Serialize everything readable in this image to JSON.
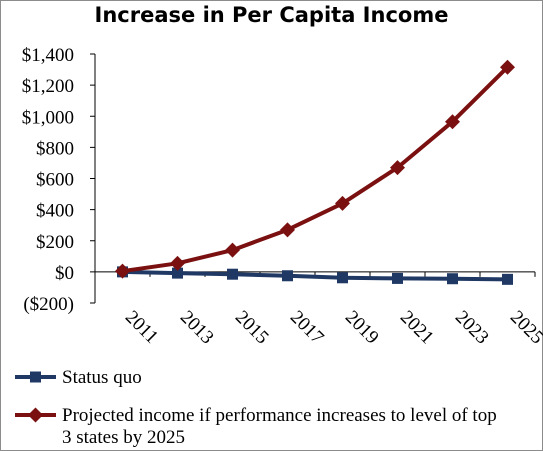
{
  "chart_data": {
    "type": "line",
    "title": "Increase in Per Capita Income",
    "xlabel": "",
    "ylabel": "",
    "categories": [
      "2011",
      "2013",
      "2015",
      "2017",
      "2019",
      "2021",
      "2023",
      "2025"
    ],
    "y_ticks": [
      "$1,400",
      "$1,200",
      "$1,000",
      "$800",
      "$600",
      "$400",
      "$200",
      "$0",
      "($200)"
    ],
    "ylim": [
      -200,
      1400
    ],
    "grid": false,
    "legend_position": "bottom",
    "series": [
      {
        "name": "Status quo",
        "values": [
          0,
          -8,
          -15,
          -25,
          -38,
          -42,
          -44,
          -48
        ],
        "color": "#1f3864",
        "marker": "square"
      },
      {
        "name": "Projected income if performance increases to level of top 3 states by 2025",
        "values": [
          5,
          55,
          140,
          270,
          440,
          670,
          965,
          1315
        ],
        "color": "#7b1010",
        "marker": "diamond"
      }
    ]
  }
}
